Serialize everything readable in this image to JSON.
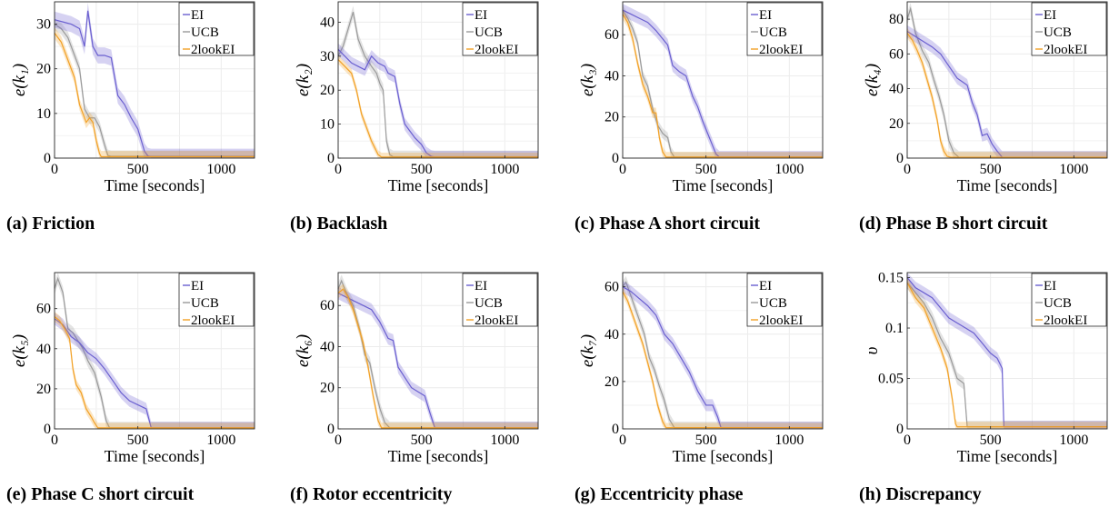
{
  "colors": {
    "EI": "#6a5fd0",
    "UCB": "#9a9a9a",
    "2lookEI": "#f2a126"
  },
  "chart_data": [
    {
      "type": "line",
      "caption": "(a) Friction",
      "ylabel": "e(k₁)",
      "xlabel": "Time [seconds]",
      "xlim": [
        0,
        1200
      ],
      "ylim": [
        0,
        35
      ],
      "xticks": [
        "0",
        "500",
        "1000"
      ],
      "xtick_values": [
        0,
        500,
        1000
      ],
      "yticks": [
        "0",
        "10",
        "20",
        "30"
      ],
      "ytick_values": [
        0,
        10,
        20,
        30
      ],
      "legend": [
        "EI",
        "UCB",
        "2lookEI"
      ],
      "series": [
        {
          "name": "EI",
          "band": 1.8,
          "x": [
            0,
            50,
            100,
            150,
            180,
            200,
            230,
            260,
            300,
            340,
            380,
            420,
            460,
            500,
            520,
            540,
            560,
            580,
            1200
          ],
          "y": [
            31,
            30.5,
            30,
            29,
            25,
            33,
            25,
            23,
            23,
            22.5,
            14,
            12,
            9,
            6.5,
            4,
            1.5,
            0.5,
            0.3,
            0.3
          ]
        },
        {
          "name": "UCB",
          "band": 1.3,
          "x": [
            0,
            40,
            80,
            120,
            150,
            180,
            210,
            240,
            270,
            300,
            320,
            340,
            1200
          ],
          "y": [
            30,
            29,
            27,
            23,
            20,
            11,
            9,
            9,
            7,
            3,
            0.6,
            0.4,
            0.4
          ]
        },
        {
          "name": "2lookEI",
          "band": 1.3,
          "x": [
            0,
            40,
            80,
            120,
            150,
            170,
            190,
            210,
            230,
            250,
            270,
            280,
            1200
          ],
          "y": [
            28,
            26,
            22,
            18,
            12,
            10,
            8,
            9,
            8,
            4,
            1,
            0.3,
            0.3
          ]
        }
      ]
    },
    {
      "type": "line",
      "caption": "(b) Backlash",
      "ylabel": "e(k₂)",
      "xlabel": "Time [seconds]",
      "xlim": [
        0,
        1200
      ],
      "ylim": [
        0,
        46
      ],
      "xticks": [
        "0",
        "500",
        "1000"
      ],
      "xtick_values": [
        0,
        500,
        1000
      ],
      "yticks": [
        "0",
        "10",
        "20",
        "30",
        "40"
      ],
      "ytick_values": [
        0,
        10,
        20,
        30,
        40
      ],
      "legend": [
        "EI",
        "UCB",
        "2lookEI"
      ],
      "series": [
        {
          "name": "EI",
          "band": 1.8,
          "x": [
            0,
            40,
            80,
            120,
            160,
            200,
            240,
            280,
            300,
            340,
            370,
            400,
            430,
            460,
            500,
            530,
            560,
            580,
            1200
          ],
          "y": [
            32,
            30,
            28,
            27,
            26,
            30,
            28,
            27,
            25,
            24,
            16,
            10,
            8,
            6,
            4,
            1.5,
            0.5,
            0.3,
            0.3
          ]
        },
        {
          "name": "UCB",
          "band": 1.8,
          "x": [
            0,
            30,
            60,
            90,
            120,
            160,
            200,
            230,
            250,
            270,
            290,
            310,
            330,
            1200
          ],
          "y": [
            30,
            33,
            38,
            43,
            35,
            30,
            27,
            25,
            22,
            20,
            5,
            1,
            0.4,
            0.4
          ]
        },
        {
          "name": "2lookEI",
          "band": 1.3,
          "x": [
            0,
            40,
            80,
            110,
            140,
            170,
            200,
            220,
            240,
            260,
            1200
          ],
          "y": [
            29,
            27,
            25,
            20,
            13,
            9,
            5,
            3,
            1,
            0.3,
            0.3
          ]
        }
      ]
    },
    {
      "type": "line",
      "caption": "(c) Phase A short circuit",
      "ylabel": "e(k₃)",
      "xlabel": "Time [seconds]",
      "xlim": [
        0,
        1200
      ],
      "ylim": [
        0,
        76
      ],
      "xticks": [
        "0",
        "500",
        "1000"
      ],
      "xtick_values": [
        0,
        500,
        1000
      ],
      "yticks": [
        "0",
        "20",
        "40",
        "60"
      ],
      "ytick_values": [
        0,
        20,
        40,
        60
      ],
      "legend": [
        "EI",
        "UCB",
        "2lookEI"
      ],
      "series": [
        {
          "name": "EI",
          "band": 3,
          "x": [
            0,
            50,
            100,
            150,
            200,
            240,
            270,
            300,
            340,
            380,
            420,
            450,
            480,
            510,
            540,
            560,
            580,
            1200
          ],
          "y": [
            72,
            70,
            68,
            66,
            62,
            58,
            55,
            45,
            42,
            40,
            30,
            25,
            18,
            12,
            6,
            2,
            0.5,
            0.5
          ]
        },
        {
          "name": "UCB",
          "band": 2.5,
          "x": [
            0,
            30,
            60,
            90,
            120,
            150,
            180,
            210,
            240,
            270,
            290,
            310,
            1200
          ],
          "y": [
            72,
            68,
            63,
            56,
            40,
            35,
            24,
            16,
            12,
            10,
            3,
            0.5,
            0.5
          ]
        },
        {
          "name": "2lookEI",
          "band": 2.5,
          "x": [
            0,
            30,
            60,
            90,
            120,
            150,
            180,
            200,
            220,
            240,
            260,
            1200
          ],
          "y": [
            70,
            66,
            58,
            46,
            36,
            30,
            22,
            22,
            10,
            3,
            0.5,
            0.5
          ]
        }
      ]
    },
    {
      "type": "line",
      "caption": "(d) Phase B short circuit",
      "ylabel": "e(k₄)",
      "xlabel": "Time [seconds]",
      "xlim": [
        0,
        1200
      ],
      "ylim": [
        0,
        90
      ],
      "xticks": [
        "0",
        "500",
        "1000"
      ],
      "xtick_values": [
        0,
        500,
        1000
      ],
      "yticks": [
        "0",
        "20",
        "40",
        "60",
        "80"
      ],
      "ytick_values": [
        0,
        20,
        40,
        60,
        80
      ],
      "legend": [
        "EI",
        "UCB",
        "2lookEI"
      ],
      "series": [
        {
          "name": "EI",
          "band": 3.5,
          "x": [
            0,
            50,
            100,
            150,
            200,
            250,
            300,
            330,
            360,
            390,
            420,
            450,
            480,
            510,
            540,
            570,
            1200
          ],
          "y": [
            73,
            70,
            67,
            64,
            60,
            53,
            46,
            44,
            42,
            32,
            25,
            13,
            14,
            8,
            4,
            0.5,
            0.5
          ]
        },
        {
          "name": "UCB",
          "band": 3.5,
          "x": [
            0,
            20,
            50,
            90,
            130,
            160,
            190,
            220,
            250,
            280,
            310,
            1200
          ],
          "y": [
            80,
            86,
            72,
            62,
            55,
            45,
            36,
            25,
            10,
            3,
            0.5,
            0.5
          ]
        },
        {
          "name": "2lookEI",
          "band": 3,
          "x": [
            0,
            30,
            60,
            90,
            120,
            150,
            180,
            200,
            220,
            240,
            260,
            1200
          ],
          "y": [
            72,
            68,
            62,
            55,
            45,
            35,
            22,
            10,
            4,
            1,
            0.5,
            0.5
          ]
        }
      ]
    },
    {
      "type": "line",
      "caption": "(e) Phase C short circuit",
      "ylabel": "e(k₅)",
      "xlabel": "Time [seconds]",
      "xlim": [
        0,
        1200
      ],
      "ylim": [
        0,
        78
      ],
      "xticks": [
        "0",
        "500",
        "1000"
      ],
      "xtick_values": [
        0,
        500,
        1000
      ],
      "yticks": [
        "0",
        "20",
        "40",
        "60"
      ],
      "ytick_values": [
        0,
        20,
        40,
        60
      ],
      "legend": [
        "EI",
        "UCB",
        "2lookEI"
      ],
      "series": [
        {
          "name": "EI",
          "band": 3,
          "x": [
            0,
            50,
            100,
            150,
            200,
            250,
            300,
            350,
            400,
            450,
            500,
            550,
            580,
            1200
          ],
          "y": [
            55,
            52,
            46,
            43,
            38,
            35,
            30,
            24,
            18,
            14,
            12,
            10,
            0.5,
            0.5
          ]
        },
        {
          "name": "UCB",
          "band": 3,
          "x": [
            0,
            20,
            50,
            80,
            110,
            140,
            170,
            200,
            240,
            280,
            310,
            330,
            1200
          ],
          "y": [
            70,
            75,
            68,
            50,
            48,
            44,
            40,
            34,
            28,
            16,
            4,
            0.5,
            0.5
          ]
        },
        {
          "name": "2lookEI",
          "band": 2.5,
          "x": [
            0,
            30,
            60,
            90,
            110,
            130,
            160,
            190,
            220,
            240,
            260,
            1200
          ],
          "y": [
            56,
            54,
            50,
            45,
            30,
            22,
            18,
            10,
            6,
            3,
            0.5,
            0.5
          ]
        }
      ]
    },
    {
      "type": "line",
      "caption": "(f) Rotor eccentricity",
      "ylabel": "e(k₆)",
      "xlabel": "Time [seconds]",
      "xlim": [
        0,
        1200
      ],
      "ylim": [
        0,
        76
      ],
      "xticks": [
        "0",
        "500",
        "1000"
      ],
      "xtick_values": [
        0,
        500,
        1000
      ],
      "yticks": [
        "0",
        "20",
        "40",
        "60"
      ],
      "ytick_values": [
        0,
        20,
        40,
        60
      ],
      "legend": [
        "EI",
        "UCB",
        "2lookEI"
      ],
      "series": [
        {
          "name": "EI",
          "band": 3,
          "x": [
            0,
            50,
            100,
            150,
            200,
            250,
            300,
            330,
            360,
            400,
            440,
            480,
            520,
            550,
            580,
            1200
          ],
          "y": [
            66,
            64,
            62,
            60,
            58,
            52,
            44,
            43,
            30,
            25,
            20,
            18,
            16,
            8,
            0.5,
            0.5
          ]
        },
        {
          "name": "UCB",
          "band": 3,
          "x": [
            0,
            20,
            50,
            90,
            130,
            160,
            190,
            220,
            250,
            280,
            310,
            1200
          ],
          "y": [
            68,
            72,
            66,
            60,
            48,
            36,
            32,
            20,
            10,
            3,
            0.5,
            0.5
          ]
        },
        {
          "name": "2lookEI",
          "band": 2.5,
          "x": [
            0,
            30,
            60,
            90,
            120,
            150,
            180,
            210,
            240,
            260,
            1200
          ],
          "y": [
            66,
            68,
            64,
            58,
            50,
            42,
            30,
            16,
            4,
            0.5,
            0.5
          ]
        }
      ]
    },
    {
      "type": "line",
      "caption": "(g) Eccentricity phase",
      "ylabel": "e(k₇)",
      "xlabel": "Time [seconds]",
      "xlim": [
        0,
        1200
      ],
      "ylim": [
        0,
        66
      ],
      "xticks": [
        "0",
        "500",
        "1000"
      ],
      "xtick_values": [
        0,
        500,
        1000
      ],
      "yticks": [
        "0",
        "20",
        "40",
        "60"
      ],
      "ytick_values": [
        0,
        20,
        40,
        60
      ],
      "legend": [
        "EI",
        "UCB",
        "2lookEI"
      ],
      "series": [
        {
          "name": "EI",
          "band": 2.5,
          "x": [
            0,
            50,
            100,
            150,
            200,
            250,
            300,
            350,
            400,
            450,
            500,
            540,
            570,
            590,
            1200
          ],
          "y": [
            60,
            58,
            55,
            52,
            48,
            40,
            36,
            30,
            24,
            16,
            10,
            10,
            5,
            0.5,
            0.5
          ]
        },
        {
          "name": "UCB",
          "band": 2.5,
          "x": [
            0,
            20,
            50,
            90,
            130,
            160,
            190,
            220,
            250,
            280,
            310,
            1200
          ],
          "y": [
            60,
            62,
            56,
            48,
            40,
            30,
            25,
            18,
            12,
            4,
            0.5,
            0.5
          ]
        },
        {
          "name": "2lookEI",
          "band": 2,
          "x": [
            0,
            30,
            60,
            90,
            120,
            150,
            180,
            210,
            240,
            260,
            1200
          ],
          "y": [
            58,
            54,
            48,
            42,
            36,
            28,
            20,
            10,
            3,
            0.5,
            0.5
          ]
        }
      ]
    },
    {
      "type": "line",
      "caption": "(h) Discrepancy",
      "ylabel": "υ",
      "xlabel": "Time [seconds]",
      "xlim": [
        0,
        1200
      ],
      "ylim": [
        0,
        0.155
      ],
      "xticks": [
        "0",
        "500",
        "1000"
      ],
      "xtick_values": [
        0,
        500,
        1000
      ],
      "yticks": [
        "0",
        "0.05",
        "0.1",
        "0.15"
      ],
      "ytick_values": [
        0,
        0.05,
        0.1,
        0.15
      ],
      "legend": [
        "EI",
        "UCB",
        "2lookEI"
      ],
      "series": [
        {
          "name": "EI",
          "band": 0.006,
          "x": [
            0,
            50,
            100,
            150,
            200,
            250,
            300,
            350,
            400,
            450,
            500,
            540,
            570,
            580,
            590,
            1200
          ],
          "y": [
            0.15,
            0.14,
            0.135,
            0.13,
            0.12,
            0.11,
            0.105,
            0.1,
            0.095,
            0.085,
            0.075,
            0.07,
            0.06,
            0.002,
            0.002,
            0.002
          ]
        },
        {
          "name": "UCB",
          "band": 0.006,
          "x": [
            0,
            50,
            100,
            150,
            200,
            250,
            300,
            340,
            360,
            1200
          ],
          "y": [
            0.145,
            0.135,
            0.125,
            0.11,
            0.09,
            0.075,
            0.05,
            0.045,
            0.002,
            0.002
          ]
        },
        {
          "name": "2lookEI",
          "band": 0.005,
          "x": [
            0,
            50,
            100,
            150,
            200,
            240,
            270,
            290,
            300,
            1200
          ],
          "y": [
            0.145,
            0.13,
            0.12,
            0.1,
            0.08,
            0.06,
            0.03,
            0.005,
            0.002,
            0.002
          ]
        }
      ]
    }
  ]
}
